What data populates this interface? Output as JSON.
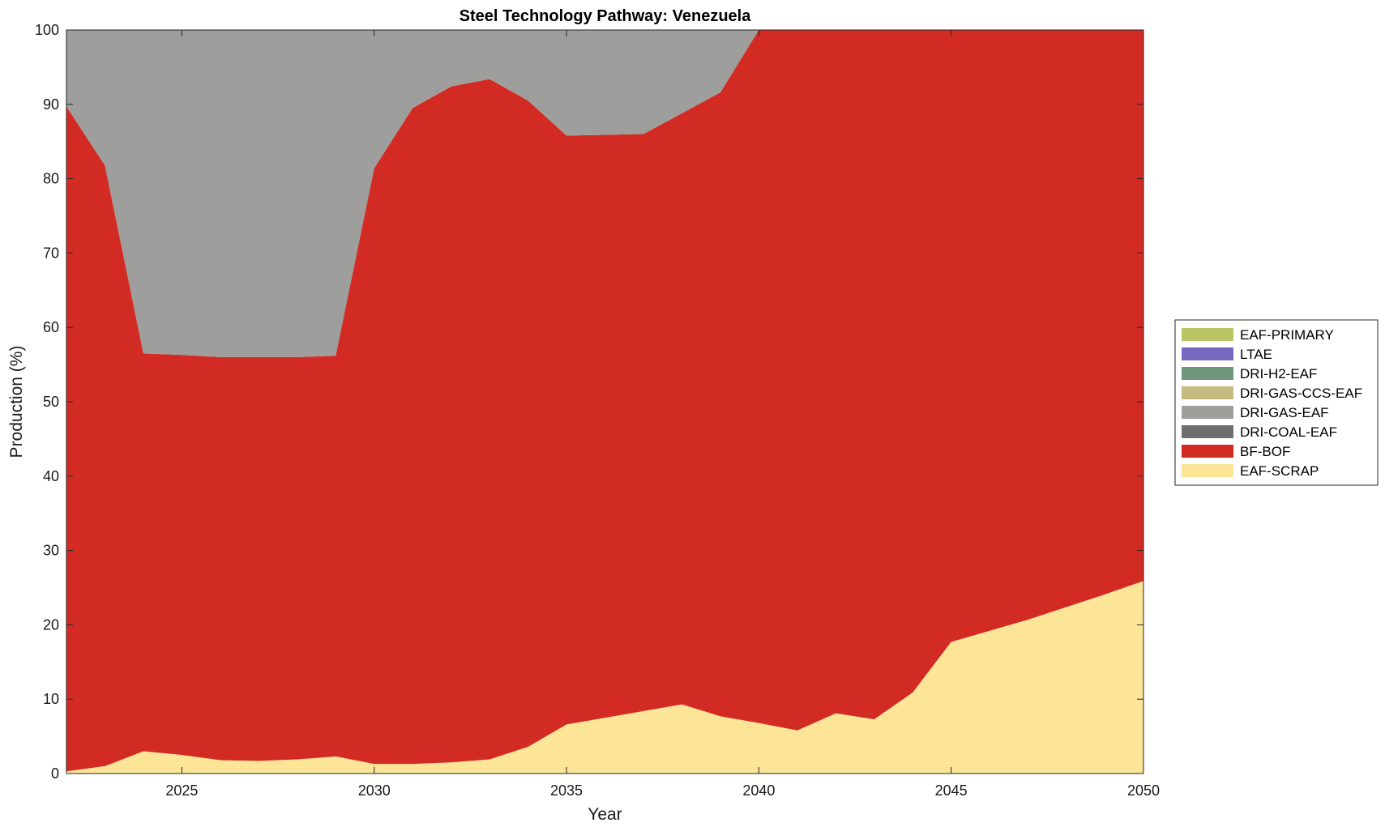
{
  "chart_data": {
    "type": "area",
    "stacked": true,
    "title": "Steel Technology Pathway: Venezuela",
    "xlabel": "Year",
    "ylabel": "Production (%)",
    "xlim": [
      2022,
      2050
    ],
    "ylim": [
      0,
      100
    ],
    "x_ticks": [
      2025,
      2030,
      2035,
      2040,
      2045,
      2050
    ],
    "y_ticks": [
      0,
      10,
      20,
      30,
      40,
      50,
      60,
      70,
      80,
      90,
      100
    ],
    "grid": false,
    "legend_position": "right",
    "x": [
      2022,
      2023,
      2024,
      2025,
      2026,
      2027,
      2028,
      2029,
      2030,
      2031,
      2032,
      2033,
      2034,
      2035,
      2036,
      2037,
      2038,
      2039,
      2040,
      2041,
      2042,
      2043,
      2044,
      2045,
      2046,
      2047,
      2048,
      2049,
      2050
    ],
    "series": [
      {
        "name": "EAF-SCRAP",
        "color": "#fde597",
        "values": [
          0.3,
          1.0,
          3.0,
          2.5,
          1.8,
          1.7,
          1.9,
          2.3,
          1.3,
          1.3,
          1.5,
          1.9,
          3.6,
          6.6,
          7.5,
          8.4,
          9.3,
          7.7,
          6.8,
          5.8,
          8.1,
          7.3,
          10.9,
          17.7,
          19.2,
          20.7,
          22.4,
          24.1,
          25.9
        ]
      },
      {
        "name": "BF-BOF",
        "color": "#d22b24",
        "values": [
          89.4,
          80.8,
          53.5,
          53.8,
          54.2,
          54.3,
          54.1,
          53.9,
          80.1,
          88.2,
          90.9,
          91.5,
          86.9,
          79.2,
          78.4,
          77.6,
          79.5,
          83.9,
          93.2,
          94.2,
          91.9,
          92.7,
          89.1,
          82.3,
          80.8,
          79.3,
          77.6,
          75.9,
          74.1
        ]
      },
      {
        "name": "DRI-COAL-EAF",
        "color": "#6e6e6e",
        "values": [
          0,
          0,
          0,
          0,
          0,
          0,
          0,
          0,
          0,
          0,
          0,
          0,
          0,
          0,
          0,
          0,
          0,
          0,
          0,
          0,
          0,
          0,
          0,
          0,
          0,
          0,
          0,
          0,
          0
        ]
      },
      {
        "name": "DRI-GAS-EAF",
        "color": "#9e9e9c",
        "values": [
          10.3,
          18.2,
          43.5,
          43.7,
          44.0,
          44.0,
          44.0,
          43.8,
          18.6,
          10.5,
          7.6,
          6.6,
          9.5,
          14.2,
          14.1,
          14.0,
          11.2,
          8.4,
          0,
          0,
          0,
          0,
          0,
          0,
          0,
          0,
          0,
          0,
          0
        ]
      },
      {
        "name": "DRI-GAS-CCS-EAF",
        "color": "#c4bc7e",
        "values": [
          0,
          0,
          0,
          0,
          0,
          0,
          0,
          0,
          0,
          0,
          0,
          0,
          0,
          0,
          0,
          0,
          0,
          0,
          0,
          0,
          0,
          0,
          0,
          0,
          0,
          0,
          0,
          0,
          0
        ]
      },
      {
        "name": "DRI-H2-EAF",
        "color": "#6f957a",
        "values": [
          0,
          0,
          0,
          0,
          0,
          0,
          0,
          0,
          0,
          0,
          0,
          0,
          0,
          0,
          0,
          0,
          0,
          0,
          0,
          0,
          0,
          0,
          0,
          0,
          0,
          0,
          0,
          0,
          0
        ]
      },
      {
        "name": "LTAE",
        "color": "#7568be",
        "values": [
          0,
          0,
          0,
          0,
          0,
          0,
          0,
          0,
          0,
          0,
          0,
          0,
          0,
          0,
          0,
          0,
          0,
          0,
          0,
          0,
          0,
          0,
          0,
          0,
          0,
          0,
          0,
          0,
          0
        ]
      },
      {
        "name": "EAF-PRIMARY",
        "color": "#bcc465",
        "values": [
          0,
          0,
          0,
          0,
          0,
          0,
          0,
          0,
          0,
          0,
          0,
          0,
          0,
          0,
          0,
          0,
          0,
          0,
          0,
          0,
          0,
          0,
          0,
          0,
          0,
          0,
          0,
          0,
          0
        ]
      }
    ],
    "legend_order": [
      "EAF-PRIMARY",
      "LTAE",
      "DRI-H2-EAF",
      "DRI-GAS-CCS-EAF",
      "DRI-GAS-EAF",
      "DRI-COAL-EAF",
      "BF-BOF",
      "EAF-SCRAP"
    ]
  }
}
